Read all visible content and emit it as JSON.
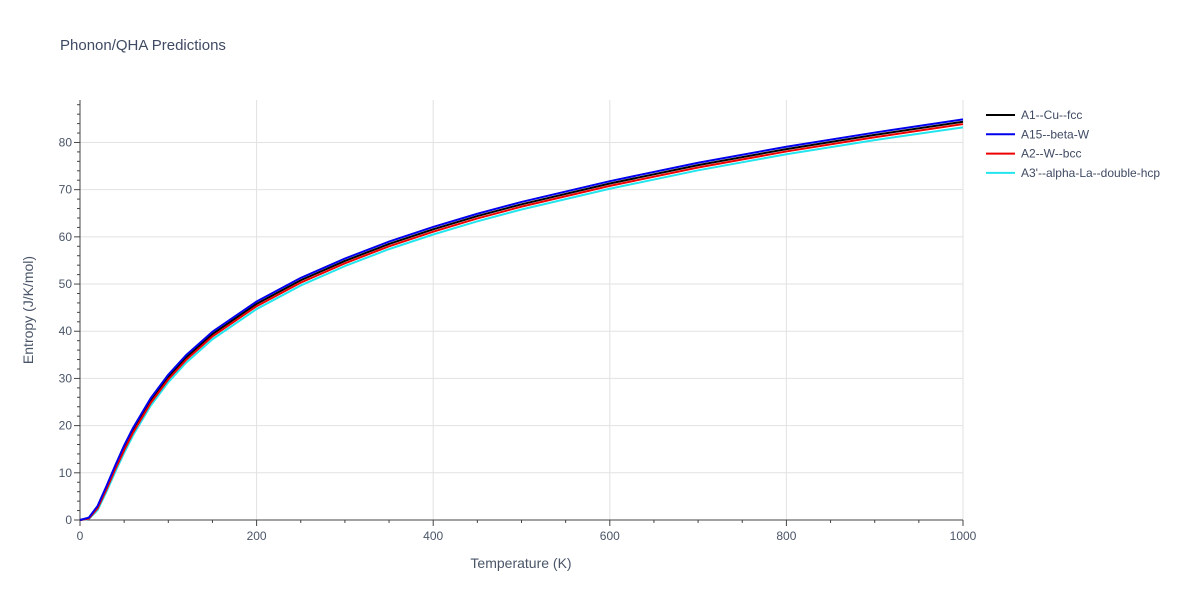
{
  "chart_data": {
    "type": "line",
    "title": "Phonon/QHA Predictions",
    "xlabel": "Temperature (K)",
    "ylabel": "Entropy (J/K/mol)",
    "xlim": [
      0,
      1000
    ],
    "ylim": [
      0,
      89
    ],
    "xticks": [
      0,
      200,
      400,
      600,
      800,
      1000
    ],
    "yticks": [
      0,
      10,
      20,
      30,
      40,
      50,
      60,
      70,
      80
    ],
    "grid": true,
    "legend_position": "top-right",
    "series": [
      {
        "name": "A1--Cu--fcc",
        "color": "#000000",
        "x": [
          0,
          10,
          20,
          30,
          40,
          50,
          60,
          80,
          100,
          120,
          150,
          200,
          250,
          300,
          350,
          400,
          450,
          500,
          600,
          700,
          800,
          900,
          1000
        ],
        "y": [
          0,
          0.4,
          2.8,
          6.9,
          11.2,
          15.3,
          19.0,
          25.3,
          30.3,
          34.4,
          39.4,
          45.8,
          50.8,
          54.9,
          58.5,
          61.6,
          64.4,
          66.9,
          71.3,
          75.2,
          78.6,
          81.6,
          84.4
        ]
      },
      {
        "name": "A15--beta-W",
        "color": "#0000ee",
        "x": [
          0,
          10,
          20,
          30,
          40,
          50,
          60,
          80,
          100,
          120,
          150,
          200,
          250,
          300,
          350,
          400,
          450,
          500,
          600,
          700,
          800,
          900,
          1000
        ],
        "y": [
          0,
          0.5,
          3.0,
          7.2,
          11.6,
          15.8,
          19.5,
          25.8,
          30.8,
          34.9,
          39.9,
          46.3,
          51.3,
          55.4,
          59.0,
          62.1,
          64.9,
          67.4,
          71.8,
          75.7,
          79.1,
          82.1,
          84.9
        ]
      },
      {
        "name": "A2--W--bcc",
        "color": "#ee0000",
        "x": [
          0,
          10,
          20,
          30,
          40,
          50,
          60,
          80,
          100,
          120,
          150,
          200,
          250,
          300,
          350,
          400,
          450,
          500,
          600,
          700,
          800,
          900,
          1000
        ],
        "y": [
          0,
          0.3,
          2.5,
          6.5,
          10.8,
          14.8,
          18.5,
          24.8,
          29.8,
          33.9,
          38.9,
          45.3,
          50.3,
          54.4,
          58.0,
          61.1,
          63.9,
          66.4,
          70.8,
          74.7,
          78.1,
          81.1,
          83.9
        ]
      },
      {
        "name": "A3'--alpha-La--double-hcp",
        "color": "#22e5ee",
        "x": [
          0,
          10,
          20,
          30,
          40,
          50,
          60,
          80,
          100,
          120,
          150,
          200,
          250,
          300,
          350,
          400,
          450,
          500,
          600,
          700,
          800,
          900,
          1000
        ],
        "y": [
          0,
          0.2,
          2.1,
          6.0,
          10.2,
          14.2,
          17.9,
          24.2,
          29.2,
          33.3,
          38.3,
          44.7,
          49.7,
          53.8,
          57.4,
          60.5,
          63.3,
          65.8,
          70.2,
          74.1,
          77.5,
          80.5,
          83.2
        ]
      }
    ]
  }
}
